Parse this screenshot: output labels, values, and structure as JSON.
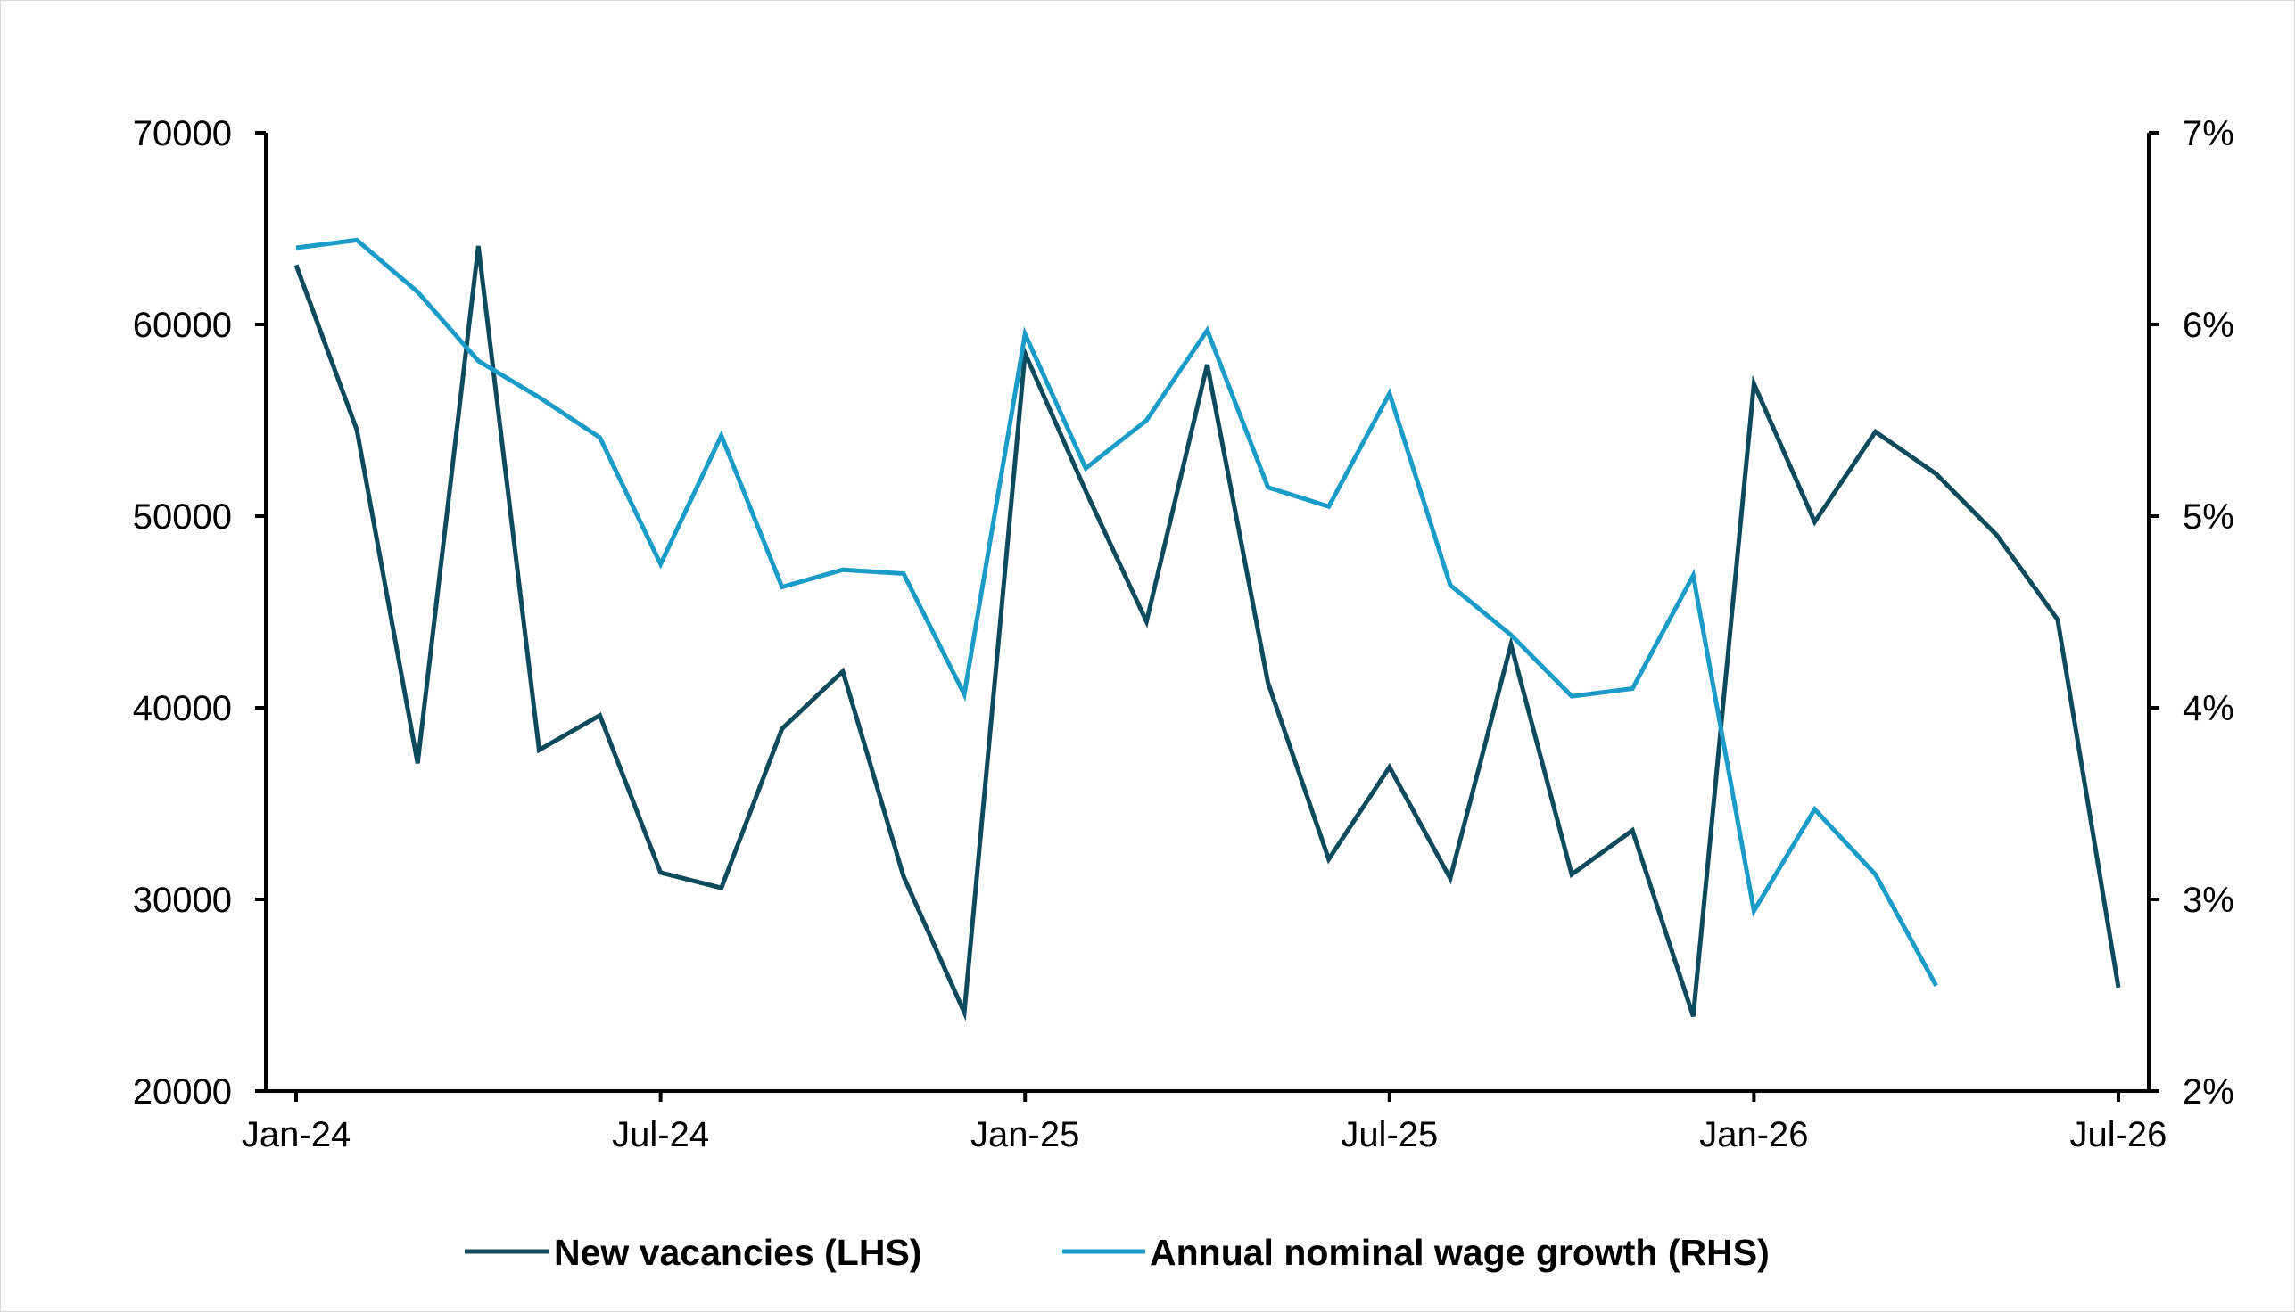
{
  "chart_data": {
    "type": "line",
    "title": "",
    "x_axis": {
      "tick_labels": [
        "Jan-24",
        "Jul-24",
        "Jan-25",
        "Jul-25",
        "Jan-26",
        "Jul-26"
      ],
      "tick_dates": [
        "2024-01",
        "2024-07",
        "2025-01",
        "2025-07",
        "2026-01",
        "2026-07"
      ],
      "range": [
        "2024-01",
        "2026-07"
      ]
    },
    "y_axis_left": {
      "ticks": [
        "20000",
        "30000",
        "40000",
        "50000",
        "60000",
        "70000"
      ],
      "range": [
        20000,
        70000
      ]
    },
    "y_axis_right": {
      "ticks": [
        "2%",
        "3%",
        "4%",
        "5%",
        "6%",
        "7%"
      ],
      "range": [
        2,
        7
      ],
      "unit": "%"
    },
    "grid": false,
    "legend_position": "bottom",
    "series": [
      {
        "name": "New vacancies (LHS)",
        "axis": "left",
        "color": "#0d4a5e",
        "points": [
          [
            "2024-01",
            63100
          ],
          [
            "2024-02",
            54500
          ],
          [
            "2024-03",
            37100
          ],
          [
            "2024-04",
            64100
          ],
          [
            "2024-05",
            37800
          ],
          [
            "2024-06",
            39600
          ],
          [
            "2024-07",
            31400
          ],
          [
            "2024-08",
            30600
          ],
          [
            "2024-09",
            38900
          ],
          [
            "2024-10",
            41900
          ],
          [
            "2024-11",
            31200
          ],
          [
            "2024-12",
            24100
          ],
          [
            "2025-01",
            58500
          ],
          [
            "2025-02",
            51300
          ],
          [
            "2025-03",
            44500
          ],
          [
            "2025-04",
            57900
          ],
          [
            "2025-05",
            41300
          ],
          [
            "2025-06",
            32100
          ],
          [
            "2025-07",
            36900
          ],
          [
            "2025-08",
            31100
          ],
          [
            "2025-09",
            43300
          ],
          [
            "2025-10",
            31300
          ],
          [
            "2025-11",
            33600
          ],
          [
            "2025-12",
            23900
          ],
          [
            "2026-01",
            56900
          ],
          [
            "2026-02",
            49700
          ],
          [
            "2026-03",
            54400
          ],
          [
            "2026-04",
            52200
          ],
          [
            "2026-05",
            49000
          ],
          [
            "2026-06",
            44600
          ],
          [
            "2026-07",
            25400
          ]
        ]
      },
      {
        "name": "Annual nominal wage growth (RHS)",
        "axis": "right",
        "color": "#1b9bc7",
        "points": [
          [
            "2024-01",
            6.4
          ],
          [
            "2024-02",
            6.44
          ],
          [
            "2024-03",
            6.17
          ],
          [
            "2024-04",
            5.81
          ],
          [
            "2024-05",
            5.62
          ],
          [
            "2024-06",
            5.41
          ],
          [
            "2024-07",
            4.75
          ],
          [
            "2024-08",
            5.42
          ],
          [
            "2024-09",
            4.63
          ],
          [
            "2024-10",
            4.72
          ],
          [
            "2024-11",
            4.7
          ],
          [
            "2024-12",
            4.07
          ],
          [
            "2025-01",
            5.95
          ],
          [
            "2025-02",
            5.25
          ],
          [
            "2025-03",
            5.5
          ],
          [
            "2025-04",
            5.97
          ],
          [
            "2025-05",
            5.15
          ],
          [
            "2025-06",
            5.05
          ],
          [
            "2025-07",
            5.64
          ],
          [
            "2025-08",
            4.64
          ],
          [
            "2025-09",
            4.38
          ],
          [
            "2025-10",
            4.06
          ],
          [
            "2025-11",
            4.1
          ],
          [
            "2025-12",
            4.69
          ],
          [
            "2026-01",
            2.94
          ],
          [
            "2026-02",
            3.47
          ],
          [
            "2026-03",
            3.13
          ],
          [
            "2026-04",
            2.55
          ]
        ]
      }
    ]
  }
}
